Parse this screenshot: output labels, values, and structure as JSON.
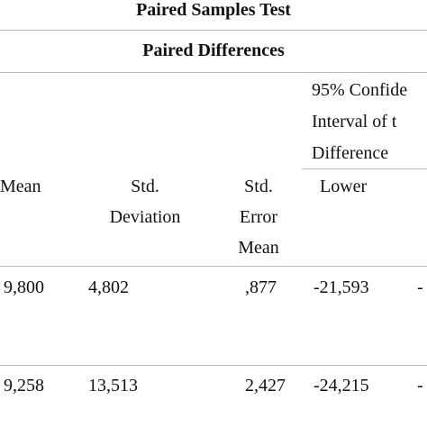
{
  "table": {
    "title": "Paired Samples Test",
    "group_header": "Paired Differences",
    "ci_header": [
      "95% Confide",
      "Interval of t",
      "Difference"
    ],
    "columns": [
      [
        "Mean"
      ],
      [
        "Std.",
        "Deviation"
      ],
      [
        "Std.",
        "Error",
        "Mean"
      ],
      [
        "Lower"
      ]
    ],
    "rows": [
      [
        "9,800",
        "4,802",
        ",877",
        "-21,593",
        "-"
      ],
      [
        "9,258",
        "13,513",
        "2,427",
        "-24,215",
        "-"
      ]
    ]
  }
}
